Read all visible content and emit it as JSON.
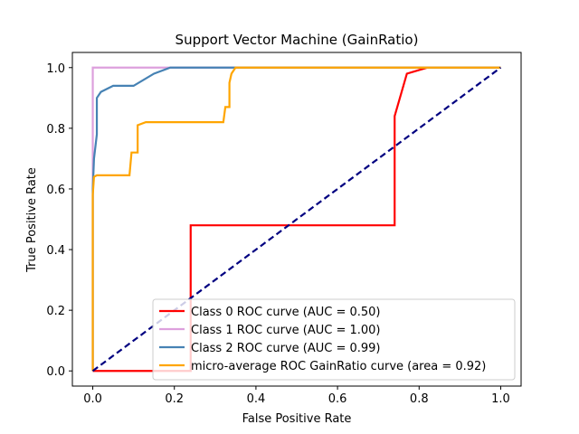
{
  "chart_data": {
    "type": "line",
    "title": "Support Vector Machine (GainRatio)",
    "xlabel": "False Positive Rate",
    "ylabel": "True Positive Rate",
    "xlim": [
      -0.05,
      1.05
    ],
    "ylim": [
      -0.05,
      1.05
    ],
    "xticks": [
      "0.0",
      "0.2",
      "0.4",
      "0.6",
      "0.8",
      "1.0"
    ],
    "yticks": [
      "0.0",
      "0.2",
      "0.4",
      "0.6",
      "0.8",
      "1.0"
    ],
    "grid": false,
    "legend_position": "lower-right",
    "series": [
      {
        "name": "Class 0 ROC curve (AUC = 0.50)",
        "color": "#ff0000",
        "x": [
          0,
          0.24,
          0.24,
          0.74,
          0.74,
          0.77,
          0.82,
          1.0
        ],
        "y": [
          0,
          0,
          0.48,
          0.48,
          0.84,
          0.98,
          1.0,
          1.0
        ]
      },
      {
        "name": "Class 1 ROC curve (AUC = 1.00)",
        "color": "#dda0dd",
        "x": [
          0,
          0,
          1.0
        ],
        "y": [
          0,
          1.0,
          1.0
        ]
      },
      {
        "name": "Class 2 ROC curve (AUC = 0.99)",
        "color": "#4682b4",
        "x": [
          0,
          0,
          0.003,
          0.01,
          0.01,
          0.02,
          0.05,
          0.1,
          0.15,
          0.19,
          0.35,
          1.0
        ],
        "y": [
          0,
          0.6,
          0.7,
          0.78,
          0.9,
          0.92,
          0.94,
          0.94,
          0.98,
          1.0,
          1.0,
          1.0
        ]
      },
      {
        "name": "micro-average ROC GainRatio curve (area = 0.92)",
        "color": "#ffa500",
        "x": [
          0,
          0,
          0.003,
          0.01,
          0.09,
          0.095,
          0.11,
          0.11,
          0.13,
          0.32,
          0.325,
          0.335,
          0.335,
          0.34,
          0.35,
          1.0
        ],
        "y": [
          0,
          0.58,
          0.64,
          0.645,
          0.645,
          0.72,
          0.72,
          0.81,
          0.82,
          0.82,
          0.87,
          0.87,
          0.95,
          0.98,
          1.0,
          1.0
        ]
      }
    ],
    "reference_line": {
      "color": "#000080",
      "dashed": true,
      "x": [
        0,
        1
      ],
      "y": [
        0,
        1
      ]
    }
  }
}
